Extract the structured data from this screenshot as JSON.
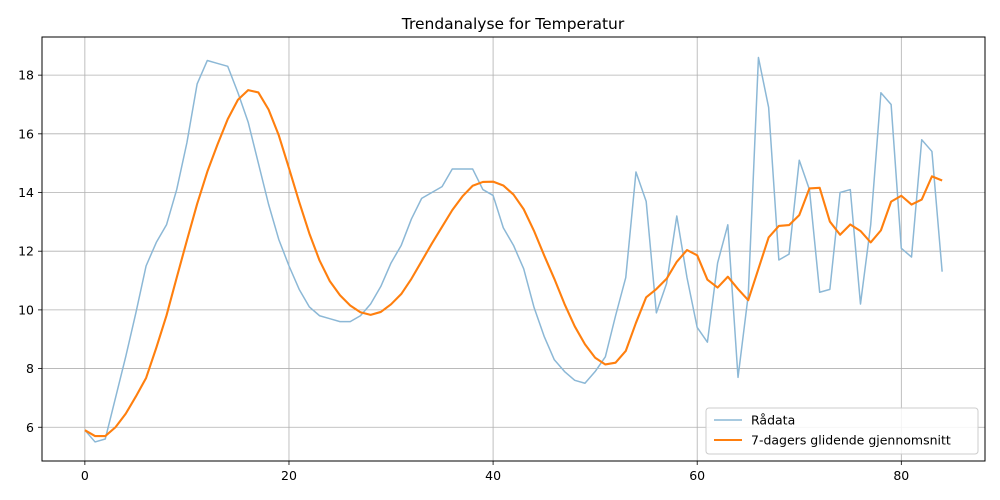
{
  "chart_data": {
    "type": "line",
    "title": "Trendanalyse for Temperatur",
    "xlabel": "",
    "ylabel": "",
    "xlim": [
      -4.2,
      88.2
    ],
    "ylim": [
      4.85,
      19.3
    ],
    "xticks": [
      0,
      20,
      40,
      60,
      80
    ],
    "yticks": [
      6,
      8,
      10,
      12,
      14,
      16,
      18
    ],
    "grid": true,
    "legend_position": "bottom-right",
    "series": [
      {
        "name": "Rådata",
        "color": "#8cb8d6",
        "values": [
          5.9,
          5.5,
          5.6,
          7.0,
          8.4,
          9.9,
          11.5,
          12.3,
          12.9,
          14.1,
          15.7,
          17.7,
          18.5,
          18.4,
          18.3,
          17.4,
          16.4,
          15.0,
          13.6,
          12.4,
          11.5,
          10.7,
          10.1,
          9.8,
          9.7,
          9.6,
          9.6,
          9.8,
          10.2,
          10.8,
          11.6,
          12.2,
          13.1,
          13.8,
          14.0,
          14.2,
          14.8,
          14.8,
          14.8,
          14.1,
          13.9,
          12.8,
          12.2,
          11.4,
          10.1,
          9.1,
          8.3,
          7.9,
          7.6,
          7.5,
          7.9,
          8.4,
          9.8,
          11.1,
          14.7,
          13.7,
          9.9,
          10.9,
          13.2,
          11.1,
          9.4,
          8.9,
          11.6,
          12.9,
          7.7,
          10.5,
          18.6,
          16.9,
          11.7,
          11.9,
          15.1,
          14.1,
          10.6,
          10.7,
          14.0,
          14.1,
          10.2,
          12.9,
          17.4,
          17.0,
          12.1,
          11.8,
          15.8,
          15.4,
          11.3
        ]
      },
      {
        "name": "7-dagers glidende gjennomsnitt",
        "color": "#ff7f0e",
        "values": [
          5.9,
          5.7,
          5.7,
          6.0,
          6.46,
          7.05,
          7.68,
          8.71,
          9.81,
          11.1,
          12.37,
          13.61,
          14.71,
          15.64,
          16.5,
          17.16,
          17.49,
          17.41,
          16.83,
          15.95,
          14.83,
          13.68,
          12.6,
          11.68,
          10.98,
          10.5,
          10.15,
          9.92,
          9.83,
          9.93,
          10.19,
          10.54,
          11.06,
          11.66,
          12.26,
          12.83,
          13.4,
          13.87,
          14.23,
          14.36,
          14.37,
          14.24,
          13.93,
          13.43,
          12.7,
          11.86,
          11.06,
          10.2,
          9.44,
          8.83,
          8.37,
          8.14,
          8.2,
          8.6,
          9.56,
          10.43,
          10.71,
          11.06,
          11.64,
          12.04,
          11.86,
          11.03,
          10.76,
          11.13,
          10.71,
          10.33,
          11.4,
          12.47,
          12.86,
          12.89,
          13.23,
          14.14,
          14.16,
          13.01,
          12.56,
          12.91,
          12.69,
          12.3,
          12.71,
          13.69,
          13.89,
          13.59,
          13.76,
          14.55,
          14.41
        ]
      }
    ]
  }
}
